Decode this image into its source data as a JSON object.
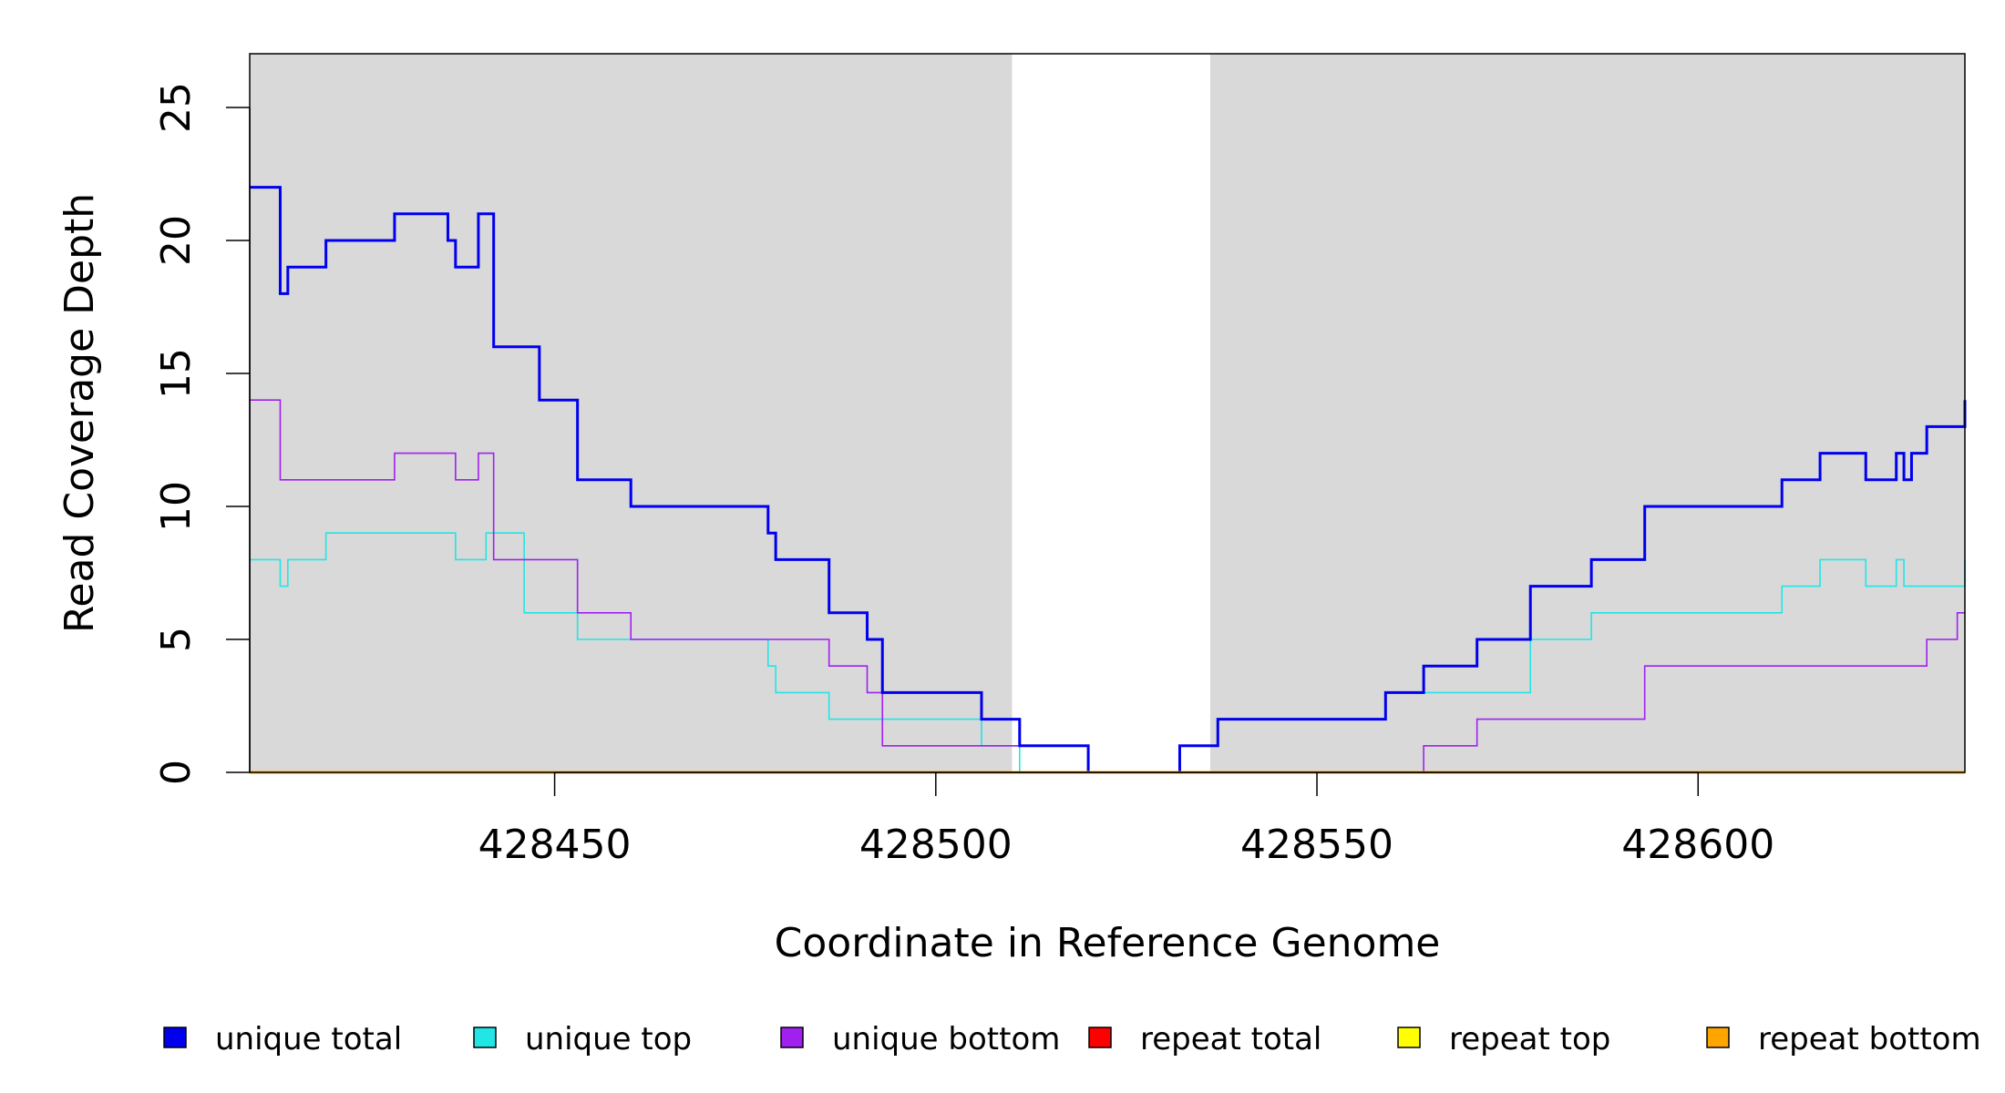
{
  "chart_data": {
    "type": "line",
    "title": "",
    "xlabel": "Coordinate in Reference Genome",
    "ylabel": "Read Coverage Depth",
    "xlim": [
      428410,
      428635
    ],
    "ylim": [
      0,
      27
    ],
    "x_ticks": [
      428450,
      428500,
      428550,
      428600
    ],
    "x_tick_labels": [
      "428450",
      "428500",
      "428550",
      "428600"
    ],
    "y_ticks": [
      0,
      5,
      10,
      15,
      20,
      25
    ],
    "y_tick_labels": [
      "0",
      "5",
      "10",
      "15",
      "20",
      "25"
    ],
    "shaded_regions": [
      [
        428410,
        428510
      ],
      [
        428536,
        428635
      ]
    ],
    "shade_color": "#d9d9d9",
    "grid": false,
    "legend_position": "bottom",
    "series": [
      {
        "name": "unique total",
        "color": "#0000ee",
        "x": [
          428410,
          428414,
          428415,
          428420,
          428429,
          428436,
          428437,
          428440,
          428442,
          428444,
          428448,
          428453,
          428460,
          428478,
          428479,
          428486,
          428491,
          428493,
          428506,
          428511,
          428520,
          428532,
          428537,
          428559,
          428564,
          428571,
          428578,
          428586,
          428593,
          428611,
          428616,
          428622,
          428626,
          428627,
          428628,
          428630,
          428635
        ],
        "y": [
          22,
          18,
          19,
          20,
          21,
          20,
          19,
          21,
          16,
          16,
          14,
          11,
          10,
          9,
          8,
          6,
          5,
          3,
          2,
          1,
          0,
          1,
          2,
          3,
          4,
          5,
          7,
          8,
          10,
          11,
          12,
          11,
          12,
          11,
          12,
          13,
          14
        ]
      },
      {
        "name": "unique top",
        "color": "#22e5e5",
        "x": [
          428410,
          428414,
          428415,
          428420,
          428437,
          428441,
          428446,
          428453,
          428478,
          428479,
          428486,
          428506,
          428511,
          428520,
          428532,
          428537,
          428559,
          428578,
          428586,
          428611,
          428616,
          428622,
          428626,
          428627,
          428635
        ],
        "y": [
          8,
          7,
          8,
          9,
          8,
          9,
          6,
          5,
          4,
          3,
          2,
          1,
          0,
          0,
          1,
          2,
          3,
          5,
          6,
          7,
          8,
          7,
          8,
          7,
          8
        ]
      },
      {
        "name": "unique bottom",
        "color": "#a020f0",
        "x": [
          428410,
          428414,
          428429,
          428437,
          428440,
          428442,
          428453,
          428460,
          428486,
          428491,
          428493,
          428511,
          428520,
          428564,
          428571,
          428593,
          428630,
          428634
        ],
        "y": [
          14,
          11,
          12,
          11,
          12,
          8,
          6,
          5,
          4,
          3,
          1,
          1,
          0,
          1,
          2,
          4,
          5,
          6
        ]
      },
      {
        "name": "repeat total",
        "color": "#ff0000",
        "x": [
          428410,
          428635
        ],
        "y": [
          0,
          0
        ]
      },
      {
        "name": "repeat top",
        "color": "#ffff00",
        "x": [
          428410,
          428635
        ],
        "y": [
          0,
          0
        ]
      },
      {
        "name": "repeat bottom",
        "color": "#ffa500",
        "x": [
          428410,
          428635
        ],
        "y": [
          0,
          0
        ]
      }
    ]
  }
}
